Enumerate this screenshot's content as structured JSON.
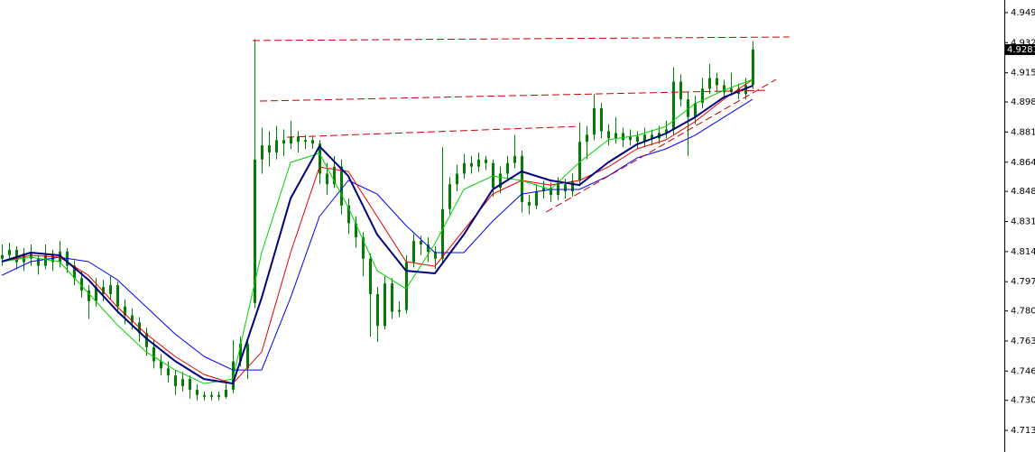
{
  "chart_data": {
    "type": "candlestick",
    "candle_color": "#008000",
    "xlim": [
      -0.25,
      138.875
    ],
    "ylim": [
      4.7008,
      4.9561
    ],
    "yticks": [
      {
        "value": 4.949,
        "label": "4.9490"
      },
      {
        "value": 4.932,
        "label": "4.9320"
      },
      {
        "value": 4.915,
        "label": "4.9150"
      },
      4.8985,
      4.8815,
      4.8645,
      {
        "value": 4.848,
        "label": "4.8480"
      },
      {
        "value": 4.831,
        "label": "4.8310"
      },
      {
        "value": 4.814,
        "label": "4.8140"
      },
      {
        "value": 4.797,
        "label": "4.7970"
      },
      4.7805,
      4.7635,
      4.7465,
      {
        "value": 4.73,
        "label": "4.7300"
      },
      {
        "value": 4.713,
        "label": "4.7130"
      }
    ],
    "last_price": 4.9281,
    "candles": [
      [
        4.81,
        4.818,
        4.806,
        4.812
      ],
      [
        4.812,
        4.819,
        4.809,
        4.815
      ],
      [
        4.815,
        4.817,
        4.804,
        4.808
      ],
      [
        4.808,
        4.816,
        4.803,
        4.813
      ],
      [
        4.813,
        4.818,
        4.806,
        4.81
      ],
      [
        4.81,
        4.812,
        4.801,
        4.806
      ],
      [
        4.806,
        4.818,
        4.804,
        4.812
      ],
      [
        4.812,
        4.815,
        4.803,
        4.808
      ],
      [
        4.808,
        4.82,
        4.805,
        4.814
      ],
      [
        4.814,
        4.816,
        4.802,
        4.806
      ],
      [
        4.806,
        4.809,
        4.795,
        4.799
      ],
      [
        4.799,
        4.803,
        4.788,
        4.792
      ],
      [
        4.792,
        4.795,
        4.776,
        4.786
      ],
      [
        4.786,
        4.799,
        4.783,
        4.794
      ],
      [
        4.794,
        4.798,
        4.786,
        4.79
      ],
      [
        4.79,
        4.8,
        4.787,
        4.795
      ],
      [
        4.795,
        4.797,
        4.779,
        4.783
      ],
      [
        4.783,
        4.787,
        4.773,
        4.778
      ],
      [
        4.778,
        4.782,
        4.77,
        4.774
      ],
      [
        4.774,
        4.777,
        4.763,
        4.768
      ],
      [
        4.768,
        4.771,
        4.755,
        4.76
      ],
      [
        4.76,
        4.764,
        4.748,
        4.752
      ],
      [
        4.752,
        4.756,
        4.744,
        4.748
      ],
      [
        4.748,
        4.752,
        4.74,
        4.744
      ],
      [
        4.744,
        4.747,
        4.733,
        4.738
      ],
      [
        4.738,
        4.746,
        4.735,
        4.742
      ],
      [
        4.742,
        4.744,
        4.731,
        4.736
      ],
      [
        4.736,
        4.739,
        4.73,
        4.733
      ],
      [
        4.733,
        4.735,
        4.73,
        4.732
      ],
      [
        4.732,
        4.735,
        4.73,
        4.733
      ],
      [
        4.733,
        4.735,
        4.73,
        4.732
      ],
      [
        4.732,
        4.74,
        4.731,
        4.736
      ],
      [
        4.736,
        4.764,
        4.734,
        4.752
      ],
      [
        4.752,
        4.766,
        4.749,
        4.762
      ],
      [
        4.762,
        4.765,
        4.742,
        4.748
      ],
      [
        4.785,
        4.934,
        4.782,
        4.866
      ],
      [
        4.866,
        4.884,
        4.858,
        4.874
      ],
      [
        4.874,
        4.882,
        4.862,
        4.87
      ],
      [
        4.87,
        4.885,
        4.866,
        4.877
      ],
      [
        4.877,
        4.883,
        4.868,
        4.875
      ],
      [
        4.875,
        4.888,
        4.872,
        4.879
      ],
      [
        4.879,
        4.882,
        4.87,
        4.876
      ],
      [
        4.876,
        4.88,
        4.872,
        4.877
      ],
      [
        4.877,
        4.879,
        4.872,
        4.875
      ],
      [
        4.875,
        4.877,
        4.852,
        4.858
      ],
      [
        4.858,
        4.864,
        4.846,
        4.852
      ],
      [
        4.852,
        4.868,
        4.85,
        4.862
      ],
      [
        4.862,
        4.866,
        4.835,
        4.84
      ],
      [
        4.84,
        4.844,
        4.824,
        4.83
      ],
      [
        4.83,
        4.834,
        4.816,
        4.822
      ],
      [
        4.822,
        4.825,
        4.8,
        4.81
      ],
      [
        4.81,
        4.813,
        4.766,
        4.79
      ],
      [
        4.79,
        4.794,
        4.763,
        4.772
      ],
      [
        4.772,
        4.8,
        4.77,
        4.796
      ],
      [
        4.796,
        4.799,
        4.776,
        4.78
      ],
      [
        4.78,
        4.786,
        4.777,
        4.781
      ],
      [
        4.781,
        4.812,
        4.779,
        4.808
      ],
      [
        4.808,
        4.824,
        4.805,
        4.82
      ],
      [
        4.82,
        4.823,
        4.812,
        4.818
      ],
      [
        4.818,
        4.822,
        4.808,
        4.814
      ],
      [
        4.814,
        4.817,
        4.804,
        4.81
      ],
      [
        4.81,
        4.873,
        4.807,
        4.838
      ],
      [
        4.838,
        4.856,
        4.835,
        4.852
      ],
      [
        4.852,
        4.863,
        4.848,
        4.858
      ],
      [
        4.858,
        4.869,
        4.855,
        4.864
      ],
      [
        4.864,
        4.868,
        4.858,
        4.862
      ],
      [
        4.862,
        4.87,
        4.859,
        4.866
      ],
      [
        4.866,
        4.868,
        4.86,
        4.864
      ],
      [
        4.864,
        4.866,
        4.845,
        4.85
      ],
      [
        4.85,
        4.862,
        4.847,
        4.858
      ],
      [
        4.858,
        4.868,
        4.855,
        4.864
      ],
      [
        4.864,
        4.88,
        4.861,
        4.868
      ],
      [
        4.868,
        4.871,
        4.836,
        4.842
      ],
      [
        4.842,
        4.846,
        4.835,
        4.84
      ],
      [
        4.84,
        4.852,
        4.838,
        4.848
      ],
      [
        4.848,
        4.854,
        4.844,
        4.85
      ],
      [
        4.85,
        4.853,
        4.842,
        4.846
      ],
      [
        4.846,
        4.856,
        4.843,
        4.852
      ],
      [
        4.852,
        4.855,
        4.844,
        4.848
      ],
      [
        4.848,
        4.858,
        4.845,
        4.854
      ],
      [
        4.854,
        4.887,
        4.851,
        4.876
      ],
      [
        4.876,
        4.885,
        4.866,
        4.88
      ],
      [
        4.88,
        4.903,
        4.877,
        4.895
      ],
      [
        4.895,
        4.898,
        4.878,
        4.882
      ],
      [
        4.882,
        4.886,
        4.874,
        4.878
      ],
      [
        4.878,
        4.89,
        4.875,
        4.881
      ],
      [
        4.881,
        4.884,
        4.873,
        4.877
      ],
      [
        4.877,
        4.883,
        4.874,
        4.879
      ],
      [
        4.879,
        4.882,
        4.872,
        4.876
      ],
      [
        4.876,
        4.884,
        4.873,
        4.88
      ],
      [
        4.88,
        4.883,
        4.874,
        4.878
      ],
      [
        4.878,
        4.885,
        4.875,
        4.881
      ],
      [
        4.881,
        4.888,
        4.878,
        4.883
      ],
      [
        4.883,
        4.918,
        4.88,
        4.91
      ],
      [
        4.91,
        4.914,
        4.896,
        4.9
      ],
      [
        4.9,
        4.904,
        4.868,
        4.89
      ],
      [
        4.89,
        4.902,
        4.886,
        4.898
      ],
      [
        4.898,
        4.912,
        4.895,
        4.906
      ],
      [
        4.906,
        4.92,
        4.903,
        4.912
      ],
      [
        4.912,
        4.915,
        4.904,
        4.908
      ],
      [
        4.908,
        4.911,
        4.9,
        4.904
      ],
      [
        4.904,
        4.915,
        4.902,
        4.906
      ],
      [
        4.906,
        4.909,
        4.9,
        4.903
      ],
      [
        4.903,
        4.912,
        4.9,
        4.908
      ],
      [
        4.908,
        4.933,
        4.906,
        4.9281
      ]
    ],
    "series": [
      {
        "color": "#0000ff",
        "width": 1,
        "x": [
          0,
          4,
          8,
          12,
          16,
          20,
          24,
          28,
          32,
          36,
          40,
          44,
          48,
          52,
          56,
          60,
          64,
          68,
          72,
          76,
          80,
          84,
          88,
          92,
          96,
          100,
          104
        ],
        "values": [
          4.8006,
          4.8083,
          4.8108,
          4.8083,
          4.7981,
          4.7828,
          4.7675,
          4.7548,
          4.7471,
          4.7471,
          4.7879,
          4.8338,
          4.8542,
          4.8465,
          4.8287,
          4.8134,
          4.8134,
          4.8312,
          4.8465,
          4.8491,
          4.8491,
          4.8567,
          4.8669,
          4.872,
          4.8796,
          4.8898,
          4.9
        ]
      },
      {
        "color": "#e00000",
        "width": 1,
        "x": [
          0,
          4,
          8,
          12,
          16,
          20,
          24,
          28,
          32,
          36,
          40,
          44,
          48,
          52,
          56,
          60,
          64,
          68,
          72,
          76,
          80,
          84,
          88,
          92,
          96,
          100,
          104
        ],
        "values": [
          4.8083,
          4.8119,
          4.8108,
          4.8006,
          4.7828,
          4.7675,
          4.7548,
          4.7446,
          4.7395,
          4.7573,
          4.8134,
          4.8618,
          4.8593,
          4.8338,
          4.8083,
          4.8057,
          4.8261,
          4.8465,
          4.8542,
          4.8516,
          4.8542,
          4.8618,
          4.872,
          4.8771,
          4.8873,
          4.9,
          4.9112
        ]
      },
      {
        "color": "#00d000",
        "width": 1,
        "x": [
          0,
          4,
          8,
          12,
          16,
          20,
          24,
          28,
          32,
          36,
          40,
          44,
          48,
          52,
          56,
          60,
          64,
          68,
          72,
          76,
          80,
          84,
          88,
          92,
          96,
          100,
          104
        ],
        "values": [
          4.8083,
          4.8108,
          4.8083,
          4.7905,
          4.7726,
          4.7573,
          4.7471,
          4.7395,
          4.742,
          4.8134,
          4.8644,
          4.8695,
          4.8389,
          4.8032,
          4.793,
          4.8185,
          4.8491,
          4.8567,
          4.8542,
          4.8491,
          4.8644,
          4.8771,
          4.8796,
          4.8847,
          4.8975,
          4.9051,
          4.9112
        ]
      },
      {
        "color": "#000080",
        "width": 2,
        "x": [
          0,
          4,
          8,
          12,
          16,
          20,
          24,
          28,
          32,
          36,
          40,
          44,
          48,
          52,
          56,
          60,
          64,
          68,
          72,
          76,
          80,
          84,
          88,
          92,
          96,
          100,
          104
        ],
        "values": [
          4.8083,
          4.8134,
          4.8119,
          4.7981,
          4.7803,
          4.765,
          4.7522,
          4.742,
          4.7395,
          4.7879,
          4.844,
          4.8735,
          4.8567,
          4.8236,
          4.8032,
          4.8017,
          4.8236,
          4.8491,
          4.8593,
          4.8542,
          4.8516,
          4.8644,
          4.8746,
          4.8807,
          4.8898,
          4.9011,
          4.9077
        ]
      }
    ],
    "trendline_color": "#cc0000",
    "trendlines": [
      {
        "x": [
          34.75,
          109.1
        ],
        "y": [
          4.9332,
          4.9352
        ]
      },
      {
        "x": [
          35.75,
          105.75
        ],
        "y": [
          4.899,
          4.9051
        ]
      },
      {
        "x": [
          39.5,
          79.75
        ],
        "y": [
          4.8786,
          4.8847
        ]
      },
      {
        "x": [
          75.4,
          107.25
        ],
        "y": [
          4.8363,
          4.9112
        ]
      }
    ]
  }
}
